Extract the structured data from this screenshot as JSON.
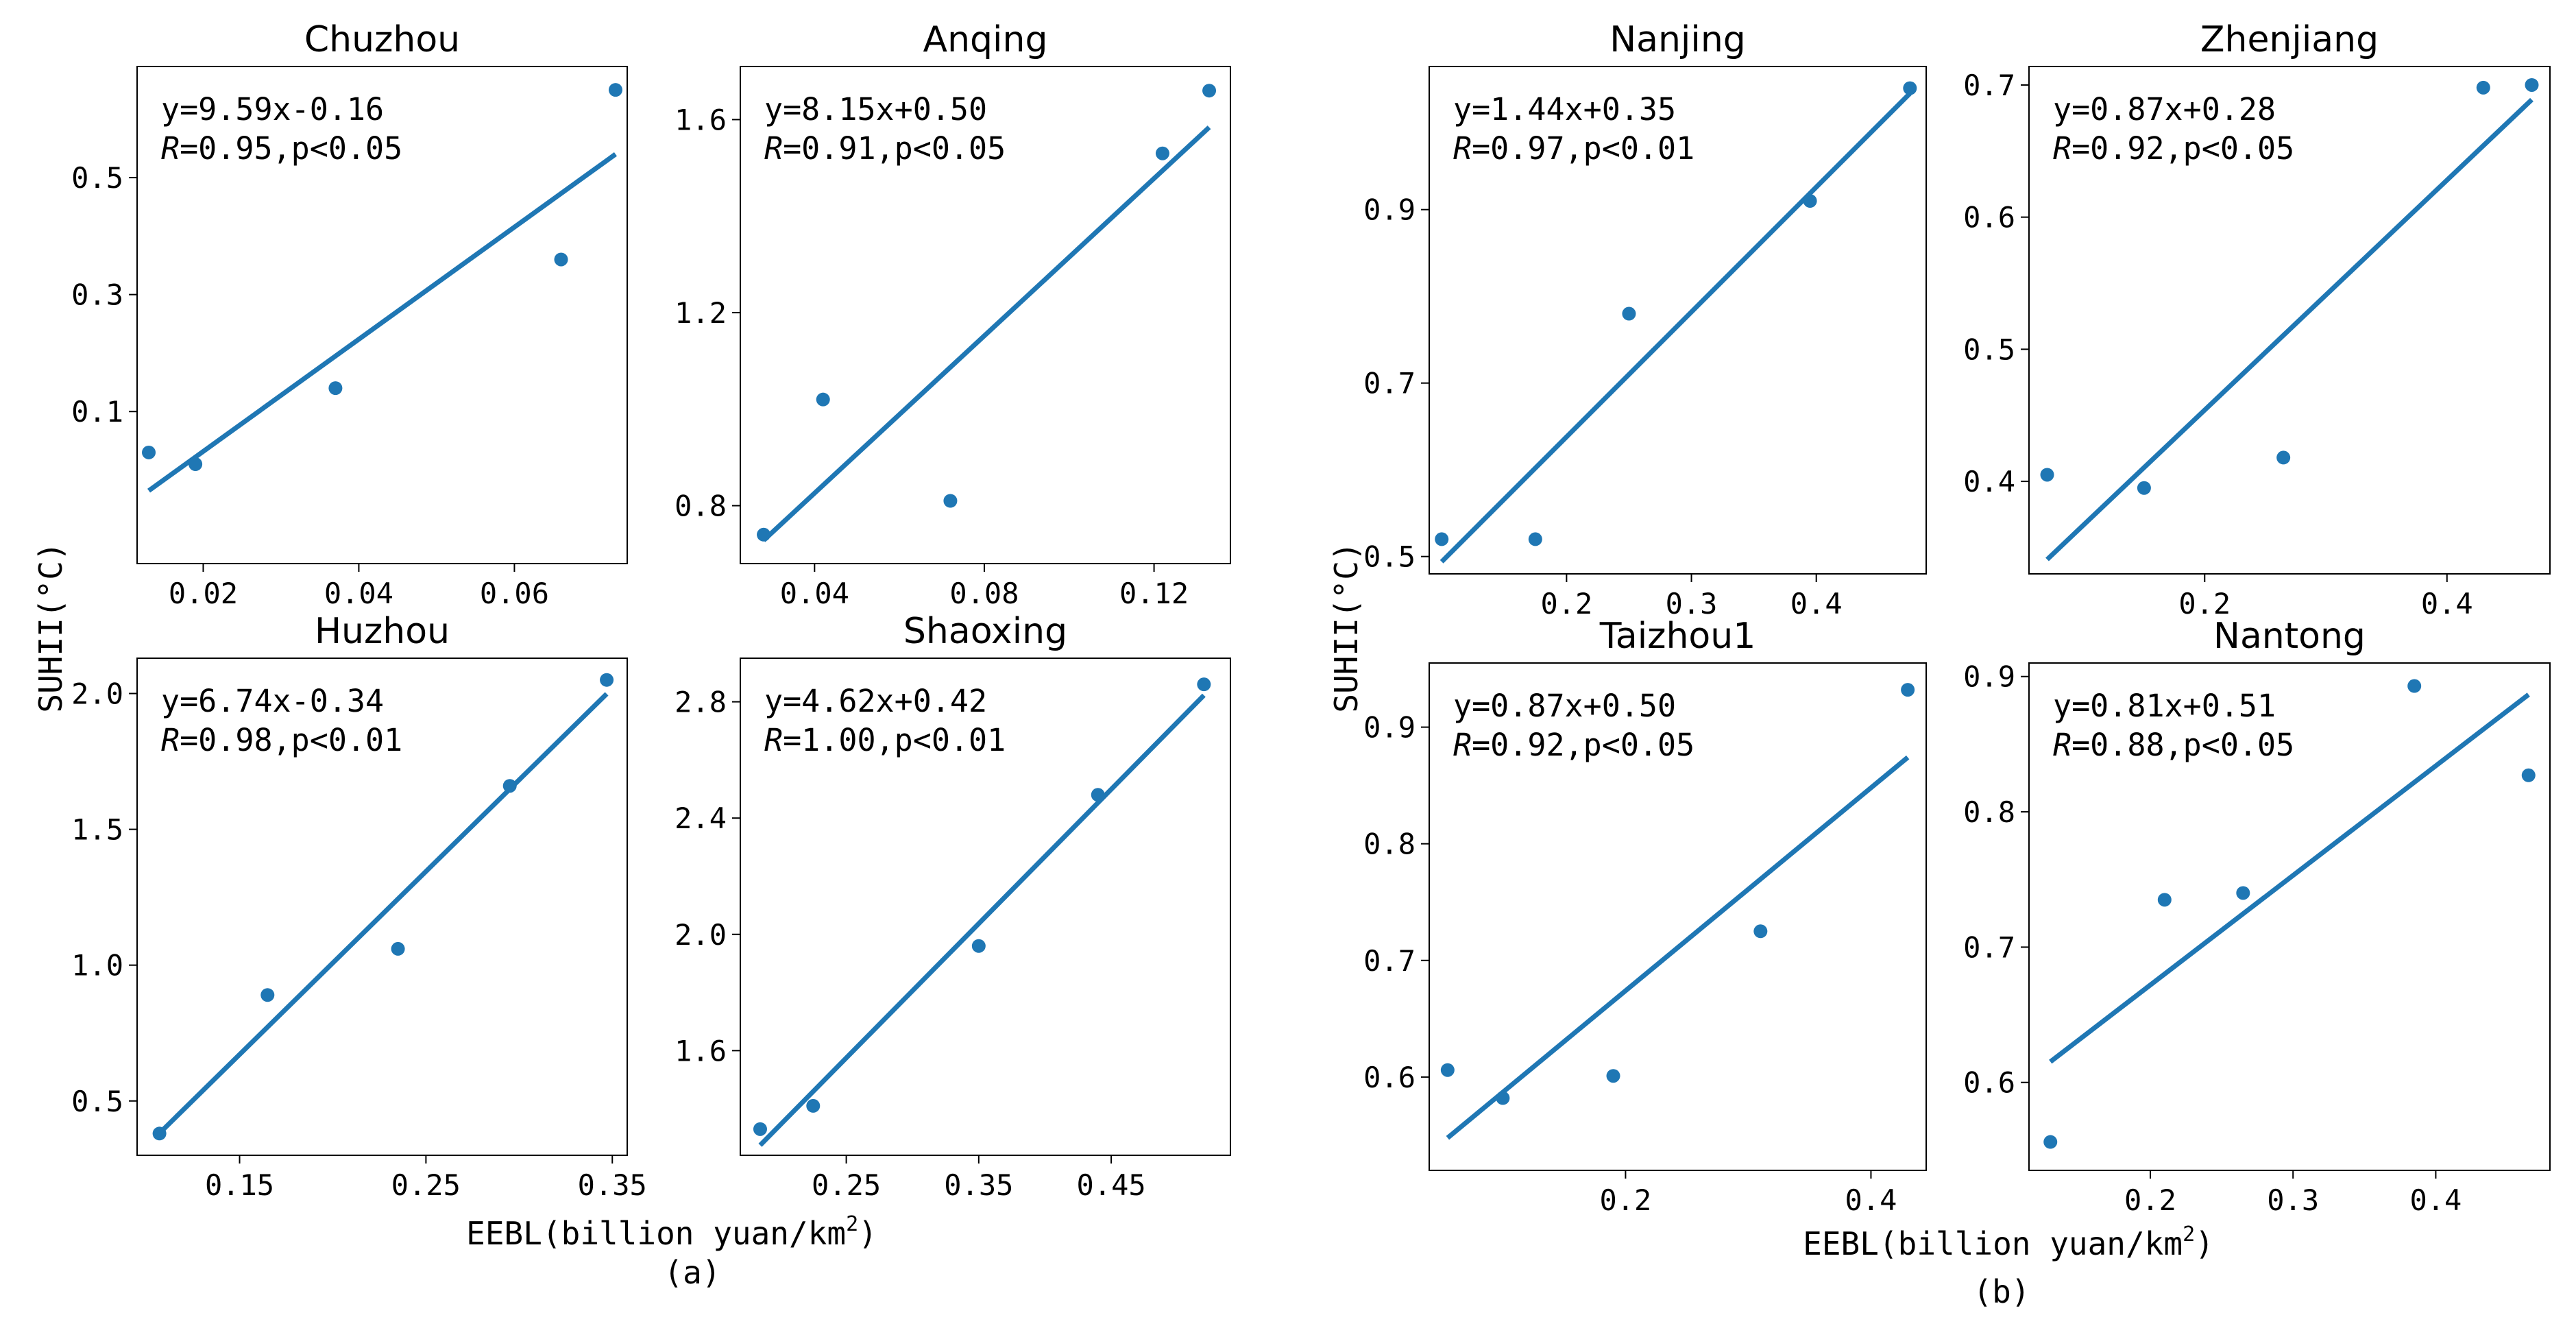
{
  "groups": [
    {
      "id": "a",
      "xlabel_text": "EEBL(billion yuan/km",
      "xlabel_sup": "2",
      "xlabel_close": ")",
      "ylabel": "SUHII(°C)",
      "panel_label": "(a)"
    },
    {
      "id": "b",
      "xlabel_text": "EEBL(billion yuan/km",
      "xlabel_sup": "2",
      "xlabel_close": ")",
      "ylabel": "SUHII(°C)",
      "panel_label": "(b)"
    }
  ],
  "chart_data": [
    {
      "id": "chuzhou",
      "type": "scatter",
      "group": "a",
      "title": "Chuzhou",
      "x": [
        0.013,
        0.019,
        0.037,
        0.066,
        0.073
      ],
      "y": [
        0.03,
        0.01,
        0.14,
        0.36,
        0.65
      ],
      "fit": {
        "slope": 9.59,
        "intercept": -0.16,
        "line1": "y=9.59x-0.16",
        "r_symbol": "R",
        "r_text": "=0.95,p<0.05"
      },
      "xlim": [
        0.0115,
        0.0745
      ],
      "ylim": [
        -0.16,
        0.69
      ],
      "xticks": [
        0.02,
        0.04,
        0.06
      ],
      "xticklabels": [
        "0.02",
        "0.04",
        "0.06"
      ],
      "yticks": [
        0.1,
        0.3,
        0.5
      ],
      "yticklabels": [
        "0.1",
        "0.3",
        "0.5"
      ]
    },
    {
      "id": "anqing",
      "type": "scatter",
      "group": "a",
      "title": "Anqing",
      "x": [
        0.028,
        0.042,
        0.072,
        0.122,
        0.133
      ],
      "y": [
        0.74,
        1.02,
        0.81,
        1.53,
        1.66
      ],
      "fit": {
        "slope": 8.15,
        "intercept": 0.5,
        "line1": "y=8.15x+0.50",
        "r_symbol": "R",
        "r_text": "=0.91,p<0.05"
      },
      "xlim": [
        0.0225,
        0.138
      ],
      "ylim": [
        0.68,
        1.71
      ],
      "xticks": [
        0.04,
        0.08,
        0.12
      ],
      "xticklabels": [
        "0.04",
        "0.08",
        "0.12"
      ],
      "yticks": [
        0.8,
        1.2,
        1.6
      ],
      "yticklabels": [
        "0.8",
        "1.2",
        "1.6"
      ]
    },
    {
      "id": "huzhou",
      "type": "scatter",
      "group": "a",
      "title": "Huzhou",
      "x": [
        0.107,
        0.165,
        0.235,
        0.295,
        0.347
      ],
      "y": [
        0.38,
        0.89,
        1.06,
        1.66,
        2.05
      ],
      "fit": {
        "slope": 6.74,
        "intercept": -0.34,
        "line1": "y=6.74x-0.34",
        "r_symbol": "R",
        "r_text": "=0.98,p<0.01"
      },
      "xlim": [
        0.095,
        0.358
      ],
      "ylim": [
        0.3,
        2.13
      ],
      "xticks": [
        0.15,
        0.25,
        0.35
      ],
      "xticklabels": [
        "0.15",
        "0.25",
        "0.35"
      ],
      "yticks": [
        0.5,
        1.0,
        1.5,
        2.0
      ],
      "yticklabels": [
        "0.5",
        "1.0",
        "1.5",
        "2.0"
      ]
    },
    {
      "id": "shaoxing",
      "type": "scatter",
      "group": "a",
      "title": "Shaoxing",
      "x": [
        0.185,
        0.225,
        0.35,
        0.44,
        0.52
      ],
      "y": [
        1.33,
        1.41,
        1.96,
        2.48,
        2.86
      ],
      "fit": {
        "slope": 4.62,
        "intercept": 0.42,
        "line1": "y=4.62x+0.42",
        "r_symbol": "R",
        "r_text": "=1.00,p<0.01"
      },
      "xlim": [
        0.17,
        0.54
      ],
      "ylim": [
        1.24,
        2.95
      ],
      "xticks": [
        0.25,
        0.35,
        0.45
      ],
      "xticklabels": [
        "0.25",
        "0.35",
        "0.45"
      ],
      "yticks": [
        1.6,
        2.0,
        2.4,
        2.8
      ],
      "yticklabels": [
        "1.6",
        "2.0",
        "2.4",
        "2.8"
      ]
    },
    {
      "id": "nanjing",
      "type": "scatter",
      "group": "b",
      "title": "Nanjing",
      "x": [
        0.1,
        0.175,
        0.25,
        0.395,
        0.475
      ],
      "y": [
        0.52,
        0.52,
        0.78,
        0.91,
        1.04
      ],
      "fit": {
        "slope": 1.44,
        "intercept": 0.35,
        "line1": "y=1.44x+0.35",
        "r_symbol": "R",
        "r_text": "=0.97,p<0.01"
      },
      "xlim": [
        0.09,
        0.488
      ],
      "ylim": [
        0.48,
        1.065
      ],
      "xticks": [
        0.2,
        0.3,
        0.4
      ],
      "xticklabels": [
        "0.2",
        "0.3",
        "0.4"
      ],
      "yticks": [
        0.5,
        0.7,
        0.9
      ],
      "yticklabels": [
        "0.5",
        "0.7",
        "0.9"
      ]
    },
    {
      "id": "zhenjiang",
      "type": "scatter",
      "group": "b",
      "title": "Zhenjiang",
      "x": [
        0.07,
        0.15,
        0.265,
        0.43,
        0.47
      ],
      "y": [
        0.405,
        0.395,
        0.418,
        0.698,
        0.7
      ],
      "fit": {
        "slope": 0.87,
        "intercept": 0.28,
        "line1": "y=0.87x+0.28",
        "r_symbol": "R",
        "r_text": "=0.92,p<0.05"
      },
      "xlim": [
        0.055,
        0.485
      ],
      "ylim": [
        0.33,
        0.714
      ],
      "xticks": [
        0.2,
        0.4
      ],
      "xticklabels": [
        "0.2",
        "0.4"
      ],
      "yticks": [
        0.4,
        0.5,
        0.6,
        0.7
      ],
      "yticklabels": [
        "0.4",
        "0.5",
        "0.6",
        "0.7"
      ]
    },
    {
      "id": "taizhou1",
      "type": "scatter",
      "group": "b",
      "title": "Taizhou1",
      "x": [
        0.055,
        0.1,
        0.19,
        0.31,
        0.43
      ],
      "y": [
        0.606,
        0.582,
        0.601,
        0.725,
        0.932
      ],
      "fit": {
        "slope": 0.87,
        "intercept": 0.5,
        "line1": "y=0.87x+0.50",
        "r_symbol": "R",
        "r_text": "=0.92,p<0.05"
      },
      "xlim": [
        0.04,
        0.445
      ],
      "ylim": [
        0.52,
        0.955
      ],
      "xticks": [
        0.2,
        0.4
      ],
      "xticklabels": [
        "0.2",
        "0.4"
      ],
      "yticks": [
        0.6,
        0.7,
        0.8,
        0.9
      ],
      "yticklabels": [
        "0.6",
        "0.7",
        "0.8",
        "0.9"
      ]
    },
    {
      "id": "nantong",
      "type": "scatter",
      "group": "b",
      "title": "Nantong",
      "x": [
        0.13,
        0.21,
        0.265,
        0.385,
        0.465
      ],
      "y": [
        0.556,
        0.735,
        0.74,
        0.893,
        0.827
      ],
      "fit": {
        "slope": 0.81,
        "intercept": 0.51,
        "line1": "y=0.81x+0.51",
        "r_symbol": "R",
        "r_text": "=0.88,p<0.05"
      },
      "xlim": [
        0.115,
        0.48
      ],
      "ylim": [
        0.535,
        0.91
      ],
      "xticks": [
        0.2,
        0.3,
        0.4
      ],
      "xticklabels": [
        "0.2",
        "0.3",
        "0.4"
      ],
      "yticks": [
        0.6,
        0.7,
        0.8,
        0.9
      ],
      "yticklabels": [
        "0.6",
        "0.7",
        "0.8",
        "0.9"
      ]
    }
  ]
}
